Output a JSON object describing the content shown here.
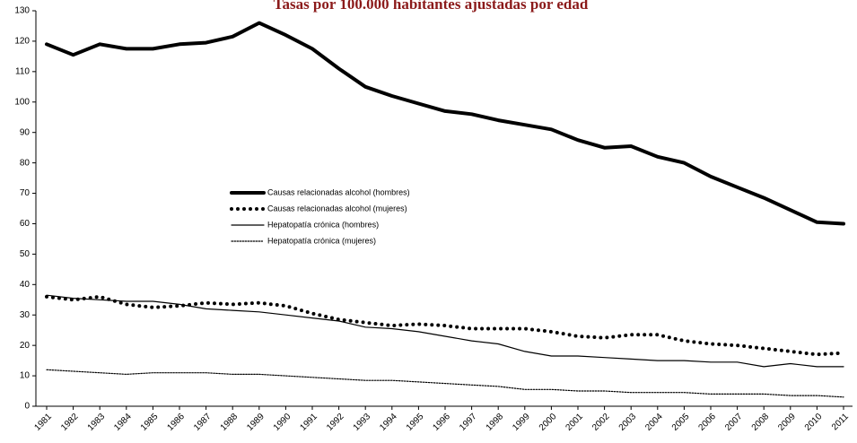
{
  "chart_data": {
    "type": "line",
    "title": "Tasas por 100.000 habitantes ajustadas por edad",
    "categories": [
      "1981",
      "1982",
      "1983",
      "1984",
      "1985",
      "1986",
      "1987",
      "1988",
      "1989",
      "1990",
      "1991",
      "1992",
      "1993",
      "1994",
      "1995",
      "1996",
      "1997",
      "1998",
      "1999",
      "2000",
      "2001",
      "2002",
      "2003",
      "2004",
      "2005",
      "2006",
      "2007",
      "2008",
      "2009",
      "2010",
      "2011"
    ],
    "series": [
      {
        "name": "Causas relacionadas alcohol (hombres)",
        "color": "#000000",
        "style": "solid",
        "width": 4,
        "values": [
          119,
          115.5,
          119,
          117.5,
          117.5,
          119,
          119.5,
          121.5,
          126,
          122,
          117.5,
          111,
          105,
          102,
          99.5,
          97,
          96,
          94,
          92.5,
          91,
          87.5,
          85,
          85.5,
          82,
          80,
          75.5,
          72,
          68.5,
          64.5,
          60.5,
          60
        ]
      },
      {
        "name": "Causas relacionadas alcohol (mujeres)",
        "color": "#000000",
        "style": "dotted",
        "width": 4,
        "values": [
          36,
          35,
          36,
          33.5,
          32.5,
          33,
          34,
          33.5,
          34,
          33,
          30.5,
          28.5,
          27.5,
          26.5,
          27,
          26.5,
          25.5,
          25.5,
          25.5,
          24.5,
          23,
          22.5,
          23.5,
          23.5,
          21.5,
          20.5,
          20,
          19,
          18,
          17,
          17.5
        ]
      },
      {
        "name": "Hepatopatía crónica (hombres)",
        "color": "#000000",
        "style": "solid",
        "width": 1.2,
        "values": [
          36.5,
          35.5,
          35,
          34.5,
          34.5,
          33.5,
          32,
          31.5,
          31,
          30,
          29,
          28,
          26,
          25.5,
          24.5,
          23,
          21.5,
          20.5,
          18,
          16.5,
          16.5,
          16,
          15.5,
          15,
          15,
          14.5,
          14.5,
          13,
          14,
          13,
          13
        ]
      },
      {
        "name": "Hepatopatía crónica (mujeres)",
        "color": "#000000",
        "style": "dotted",
        "width": 1.2,
        "values": [
          12,
          11.5,
          11,
          10.5,
          11,
          11,
          11,
          10.5,
          10.5,
          10,
          9.5,
          9,
          8.5,
          8.5,
          8,
          7.5,
          7,
          6.5,
          5.5,
          5.5,
          5,
          5,
          4.5,
          4.5,
          4.5,
          4,
          4,
          4,
          3.5,
          3.5,
          3
        ]
      }
    ],
    "ylim": [
      0,
      130
    ],
    "yticks": [
      0,
      10,
      20,
      30,
      40,
      50,
      60,
      70,
      80,
      90,
      100,
      110,
      120,
      130
    ],
    "grid": false
  }
}
